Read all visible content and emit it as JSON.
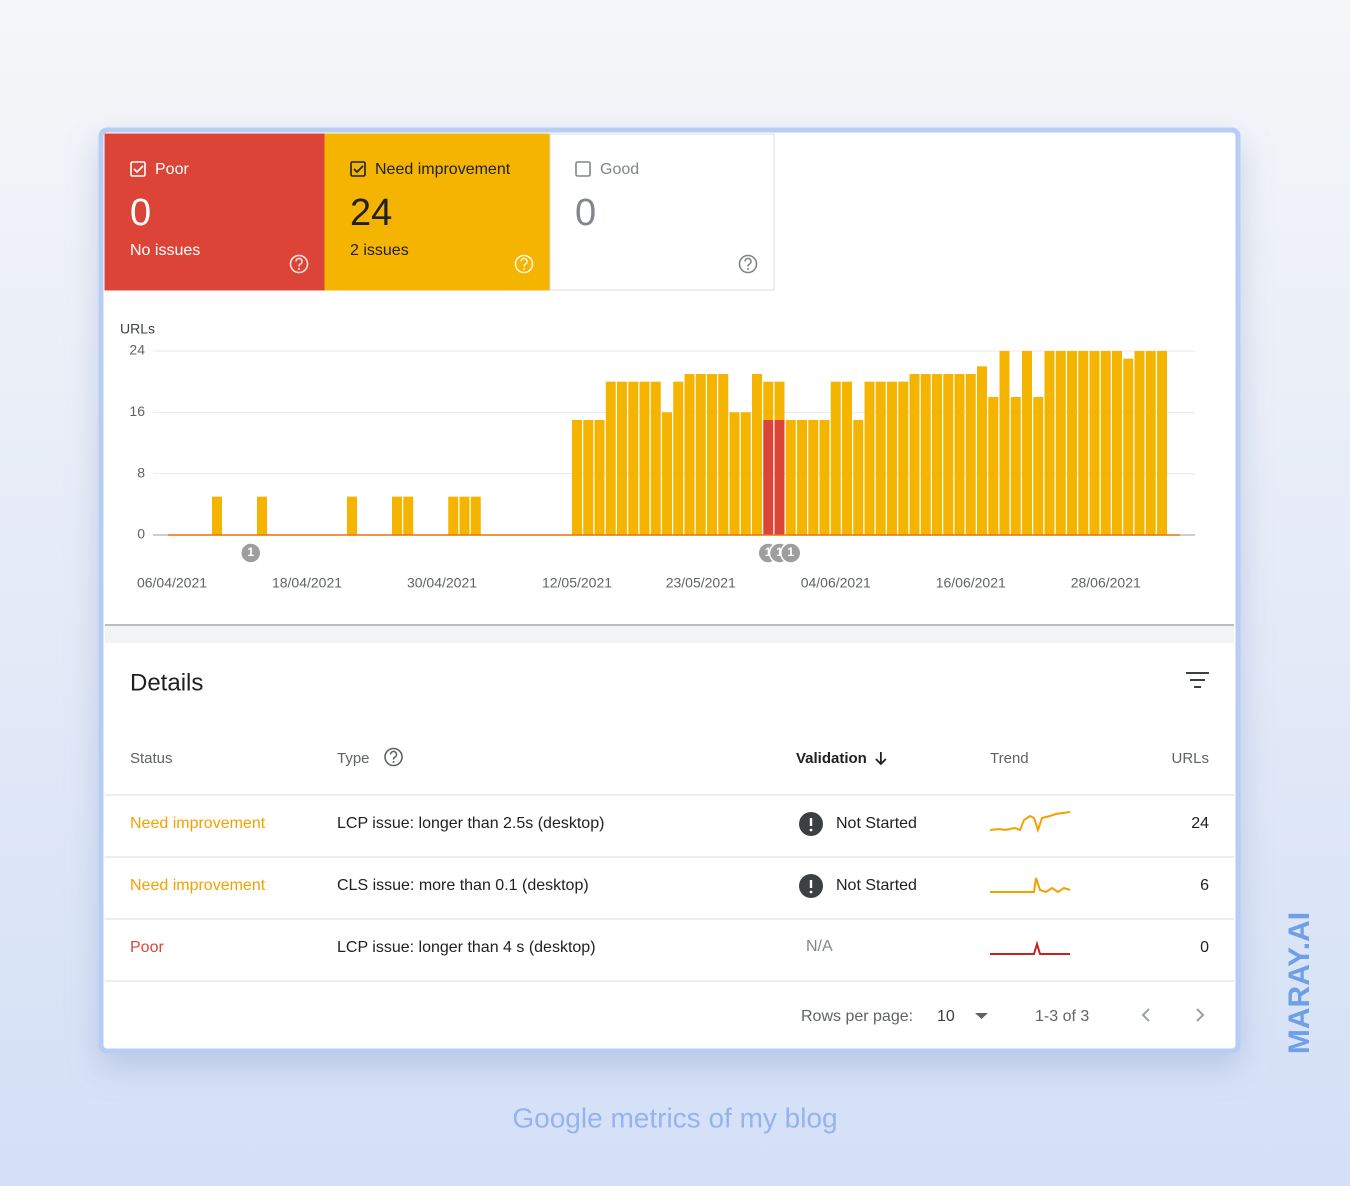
{
  "cards": [
    {
      "label": "Poor",
      "count": 0,
      "caption": "No issues",
      "checked": true,
      "color": "#db4437",
      "text_color": "#ffffff"
    },
    {
      "label": "Need improvement",
      "count": 24,
      "caption": "2 issues",
      "checked": true,
      "color": "#f4b400",
      "text_color": "#202124"
    },
    {
      "label": "Good",
      "count": 0,
      "checked": false,
      "color": "#ffffff",
      "text_color": "#80868b"
    }
  ],
  "chart_data": {
    "type": "bar",
    "stacked": true,
    "y_label": "URLs",
    "categories": [
      "06/04/2021",
      null,
      null,
      null,
      null,
      null,
      null,
      null,
      null,
      null,
      null,
      null,
      "18/04/2021",
      null,
      null,
      null,
      null,
      null,
      null,
      null,
      null,
      null,
      null,
      null,
      "30/04/2021",
      null,
      null,
      null,
      null,
      null,
      null,
      null,
      null,
      null,
      null,
      null,
      "12/05/2021",
      null,
      null,
      null,
      null,
      null,
      null,
      null,
      null,
      null,
      null,
      "23/05/2021",
      null,
      null,
      null,
      null,
      null,
      null,
      null,
      null,
      null,
      null,
      null,
      "04/06/2021",
      null,
      null,
      null,
      null,
      null,
      null,
      null,
      null,
      null,
      null,
      null,
      "16/06/2021",
      null,
      null,
      null,
      null,
      null,
      null,
      null,
      null,
      null,
      null,
      null,
      "28/06/2021",
      null,
      null,
      null,
      null,
      null
    ],
    "series": [
      {
        "name": "Poor",
        "color": "#db4437",
        "values": [
          0,
          0,
          0,
          0,
          0,
          0,
          0,
          0,
          0,
          0,
          0,
          0,
          0,
          0,
          0,
          0,
          0,
          0,
          0,
          0,
          0,
          0,
          0,
          0,
          0,
          0,
          0,
          0,
          0,
          0,
          0,
          0,
          0,
          0,
          0,
          0,
          0,
          0,
          0,
          0,
          0,
          0,
          0,
          0,
          0,
          0,
          0,
          0,
          0,
          0,
          0,
          0,
          0,
          15,
          15,
          0,
          0,
          0,
          0,
          0,
          0,
          0,
          0,
          0,
          0,
          0,
          0,
          0,
          0,
          0,
          0,
          0,
          0,
          0,
          0,
          0,
          0,
          0,
          0,
          0,
          0,
          0,
          0,
          0,
          0,
          0,
          0,
          0,
          0
        ]
      },
      {
        "name": "Need improvement",
        "color": "#f4b400",
        "values": [
          0,
          0,
          0,
          0,
          5,
          0,
          0,
          0,
          5,
          0,
          0,
          0,
          0,
          0,
          0,
          0,
          5,
          0,
          0,
          0,
          5,
          5,
          0,
          0,
          0,
          5,
          5,
          5,
          0,
          0,
          0,
          0,
          0,
          0,
          0,
          0,
          15,
          15,
          15,
          20,
          20,
          20,
          20,
          20,
          16,
          20,
          21,
          21,
          21,
          21,
          16,
          16,
          21,
          5,
          5,
          15,
          15,
          15,
          15,
          20,
          20,
          15,
          20,
          20,
          20,
          20,
          21,
          21,
          21,
          21,
          21,
          21,
          22,
          18,
          24,
          18,
          24,
          18,
          24,
          24,
          24,
          24,
          24,
          24,
          24,
          23,
          24,
          24,
          24
        ]
      }
    ],
    "ylim": [
      0,
      24
    ],
    "yticks": [
      0,
      8,
      16,
      24
    ],
    "grid": true,
    "annotations": [
      {
        "x": 7,
        "text": "1"
      },
      {
        "x": 53,
        "text": "1"
      },
      {
        "x": 54,
        "text": "1"
      },
      {
        "x": 55,
        "text": "1"
      }
    ]
  },
  "details": {
    "title": "Details",
    "columns": [
      "Status",
      "Type",
      "Validation",
      "Trend",
      "URLs"
    ],
    "rows": [
      {
        "status": "Need improvement",
        "type": "LCP issue: longer than 2.5s (desktop)",
        "validation": "Not Started",
        "validation_icon": true,
        "urls": 24
      },
      {
        "status": "Need improvement",
        "type": "CLS issue: more than 0.1 (desktop)",
        "validation": "Not Started",
        "validation_icon": true,
        "urls": 6
      },
      {
        "status": "Poor",
        "type": "LCP issue: longer than 4 s (desktop)",
        "validation": "N/A",
        "validation_icon": false,
        "urls": 0
      }
    ],
    "footer": {
      "rows_per_page_label": "Rows per page:",
      "rows_per_page": 10,
      "range": "1-3 of 3"
    }
  },
  "caption": "Google metrics of my blog",
  "watermark": "MARAY.AI"
}
